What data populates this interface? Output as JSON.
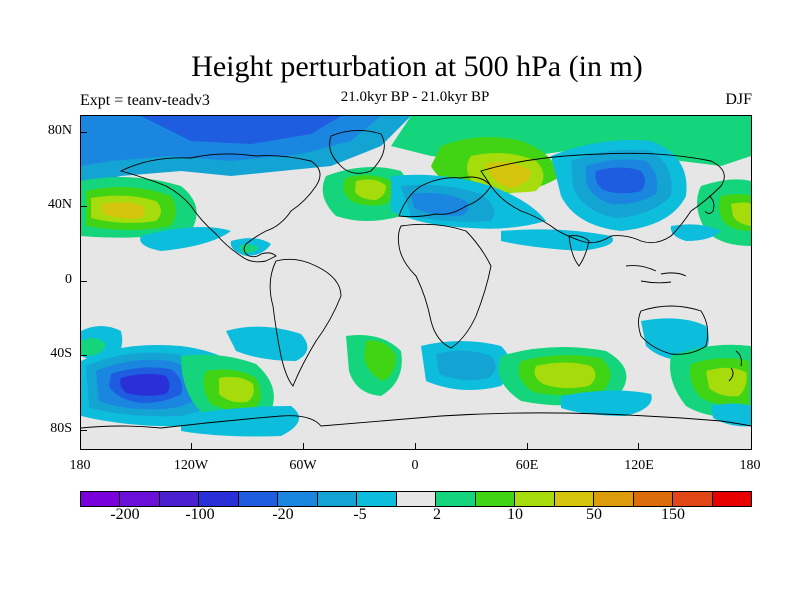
{
  "title": "Height perturbation at 500 hPa (in m)",
  "subtitle": "21.0kyr BP - 21.0kyr BP",
  "left_label": "Expt = teanv-teadv3",
  "right_label": "DJF",
  "y_labels": [
    "80N",
    "40N",
    "0",
    "40S",
    "80S"
  ],
  "x_labels": [
    "180",
    "120W",
    "60W",
    "0",
    "60E",
    "120E",
    "180"
  ],
  "colorbar": {
    "colors": [
      "#7a00dc",
      "#6a10d8",
      "#4a20d0",
      "#2a30d8",
      "#1e5ce0",
      "#1b86e0",
      "#14a4d4",
      "#0cbedc",
      "#e6e6e6",
      "#14d47c",
      "#40d414",
      "#a6dc0c",
      "#d4c40c",
      "#dc9c0c",
      "#dc6c0c",
      "#e04616",
      "#e80000"
    ],
    "labels": [
      "-200",
      "-100",
      "-20",
      "-5",
      "2",
      "10",
      "50",
      "150"
    ]
  },
  "colors": {
    "background": "#ffffff",
    "land_ocean_fill": "#e6e6e6",
    "coastline": "#000000"
  }
}
